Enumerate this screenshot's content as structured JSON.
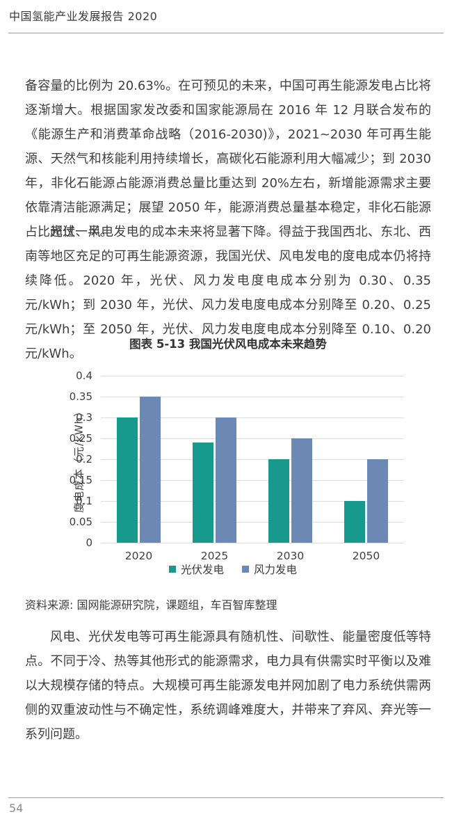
{
  "header": {
    "title": "中国氢能产业发展报告 2020"
  },
  "paragraphs": {
    "p1": "备容量的比例为 20.63%。在可预见的未来，中国可再生能源发电占比将逐渐增大。根据国家发改委和国家能源局在 2016 年 12 月联合发布的《能源生产和消费革命战略（2016-2030)》，2021~2030 年可再生能源、天然气和核能利用持续增长，高碳化石能源利用大幅减少；到 2030 年，非化石能源占能源消费总量比重达到 20%左右，新增能源需求主要依靠清洁能源满足；展望 2050 年，能源消费总量基本稳定，非化石能源占比超过一半。",
    "p2": "光伏、风电发电的成本未来将显著下降。得益于我国西北、东北、西南等地区充足的可再生能源资源，我国光伏、风电发电的度电成本仍将持续降低。2020 年，光伏、风力发电度电成本分别为 0.30、0.35 元/kWh；到 2030 年，光伏、风力发电度电成本分别降至 0.20、0.25 元/kWh；至 2050 年，光伏、风力发电度电成本分别降至 0.10、0.20 元/kWh。",
    "p3": "风电、光伏发电等可再生能源具有随机性、间歇性、能量密度低等特点。不同于冷、热等其他形式的能源需求，电力具有供需实时平衡以及难以大规模存储的特点。大规模可再生能源发电并网加剧了电力系统供需两侧的双重波动性与不确定性，系统调峰难度大，并带来了弃风、弃光等一系列问题。"
  },
  "figure": {
    "title": "图表 5-13 我国光伏风电成本未来趋势",
    "source": "资料来源: 国网能源研究院，课题组，车百智库整理"
  },
  "chart_data": {
    "type": "bar",
    "title": "图表 5-13 我国光伏风电成本未来趋势",
    "categories": [
      "2020",
      "2025",
      "2030",
      "2050"
    ],
    "series": [
      {
        "name": "光伏发电",
        "color": "#17998E",
        "values": [
          0.3,
          0.24,
          0.2,
          0.1
        ]
      },
      {
        "name": "风力发电",
        "color": "#6B89B4",
        "values": [
          0.35,
          0.3,
          0.25,
          0.2
        ]
      }
    ],
    "xlabel": "",
    "ylabel": "度电成本（元/kWh）",
    "ylim": [
      0,
      0.4
    ],
    "yticks": [
      0,
      0.05,
      0.1,
      0.15,
      0.2,
      0.25,
      0.3,
      0.35,
      0.4
    ],
    "ytick_labels": [
      "0",
      "0.05",
      "0.1",
      "0.15",
      "0.2",
      "0.25",
      "0.3",
      "0.35",
      "0.4"
    ],
    "grid": true,
    "legend_position": "bottom",
    "gridline_color": "#DCDCDC"
  },
  "footer": {
    "page_number": "54"
  }
}
